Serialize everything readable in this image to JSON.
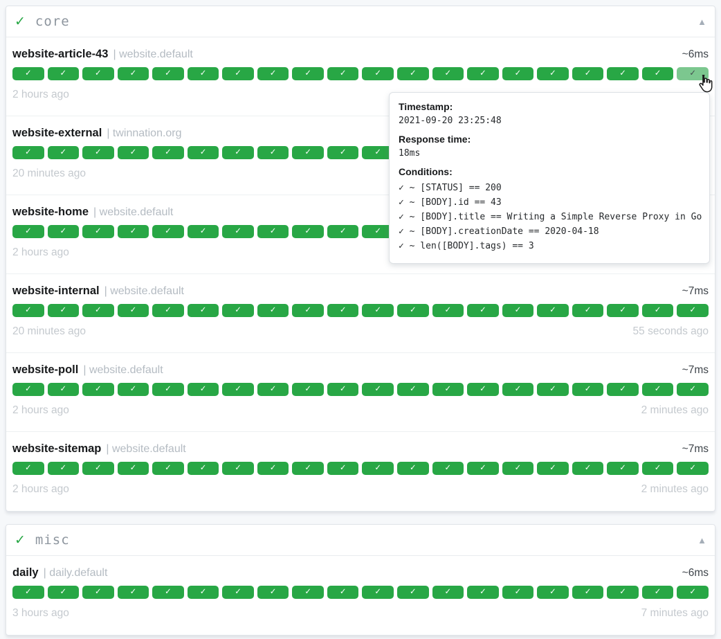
{
  "ui": {
    "badge_check": "✓"
  },
  "colors": {
    "success_green": "#28a745",
    "success_green_hover": "#7cc78f",
    "group_check_green": "#28a745",
    "page_background": "#f6f8fa"
  },
  "groups": [
    {
      "status_icon": "✓",
      "name": "core",
      "collapse_icon": "▲",
      "services": [
        {
          "name": "website-article-43",
          "suffix": "| website.default",
          "response_time": "~6ms",
          "oldest": "2 hours ago",
          "newest": "",
          "badge_count": 20,
          "hovered_badge": 19
        },
        {
          "name": "website-external",
          "suffix": "| twinnation.org",
          "response_time": "",
          "oldest": "20 minutes ago",
          "newest": "",
          "badge_count": 20,
          "hovered_badge": -1
        },
        {
          "name": "website-home",
          "suffix": "| website.default",
          "response_time": "",
          "oldest": "2 hours ago",
          "newest": "",
          "badge_count": 20,
          "hovered_badge": -1
        },
        {
          "name": "website-internal",
          "suffix": "| website.default",
          "response_time": "~7ms",
          "oldest": "20 minutes ago",
          "newest": "55 seconds ago",
          "badge_count": 20,
          "hovered_badge": -1
        },
        {
          "name": "website-poll",
          "suffix": "| website.default",
          "response_time": "~7ms",
          "oldest": "2 hours ago",
          "newest": "2 minutes ago",
          "badge_count": 20,
          "hovered_badge": -1
        },
        {
          "name": "website-sitemap",
          "suffix": "| website.default",
          "response_time": "~7ms",
          "oldest": "2 hours ago",
          "newest": "2 minutes ago",
          "badge_count": 20,
          "hovered_badge": -1
        }
      ]
    },
    {
      "status_icon": "✓",
      "name": "misc",
      "collapse_icon": "▲",
      "services": [
        {
          "name": "daily",
          "suffix": "| daily.default",
          "response_time": "~6ms",
          "oldest": "3 hours ago",
          "newest": "7 minutes ago",
          "badge_count": 20,
          "hovered_badge": -1
        }
      ]
    }
  ],
  "tooltip": {
    "timestamp_label": "Timestamp:",
    "timestamp": "2021-09-20 23:25:48",
    "response_label": "Response time:",
    "response": "18ms",
    "conditions_label": "Conditions:",
    "conditions": [
      "✓ ~ [STATUS] == 200",
      "✓ ~ [BODY].id == 43",
      "✓ ~ [BODY].title == Writing a Simple Reverse Proxy in Go",
      "✓ ~ [BODY].creationDate == 2020-04-18",
      "✓ ~ len([BODY].tags) == 3"
    ]
  }
}
